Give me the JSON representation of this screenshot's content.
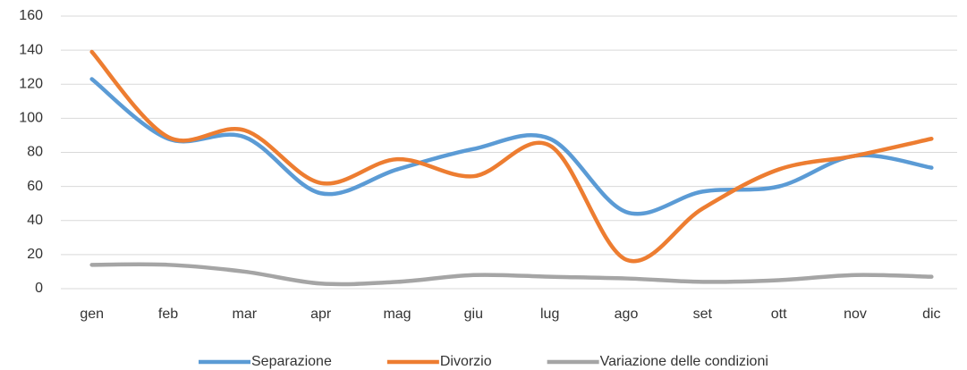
{
  "chart_data": {
    "type": "line",
    "categories": [
      "gen",
      "feb",
      "mar",
      "apr",
      "mag",
      "giu",
      "lug",
      "ago",
      "set",
      "ott",
      "nov",
      "dic"
    ],
    "series": [
      {
        "name": "Separazione",
        "color": "#5b9bd5",
        "values": [
          123,
          88,
          89,
          56,
          70,
          82,
          88,
          45,
          57,
          60,
          78,
          71
        ]
      },
      {
        "name": "Divorzio",
        "color": "#ed7d31",
        "values": [
          139,
          89,
          93,
          62,
          76,
          66,
          84,
          17,
          47,
          70,
          78,
          88
        ]
      },
      {
        "name": "Variazione delle condizioni",
        "color": "#a5a5a5",
        "values": [
          14,
          14,
          10,
          3,
          4,
          8,
          7,
          6,
          4,
          5,
          8,
          7
        ]
      }
    ],
    "ylim": [
      0,
      160
    ],
    "yticks": [
      0,
      20,
      40,
      60,
      80,
      100,
      120,
      140,
      160
    ],
    "grid": true,
    "legend": "bottom",
    "smooth": true
  }
}
